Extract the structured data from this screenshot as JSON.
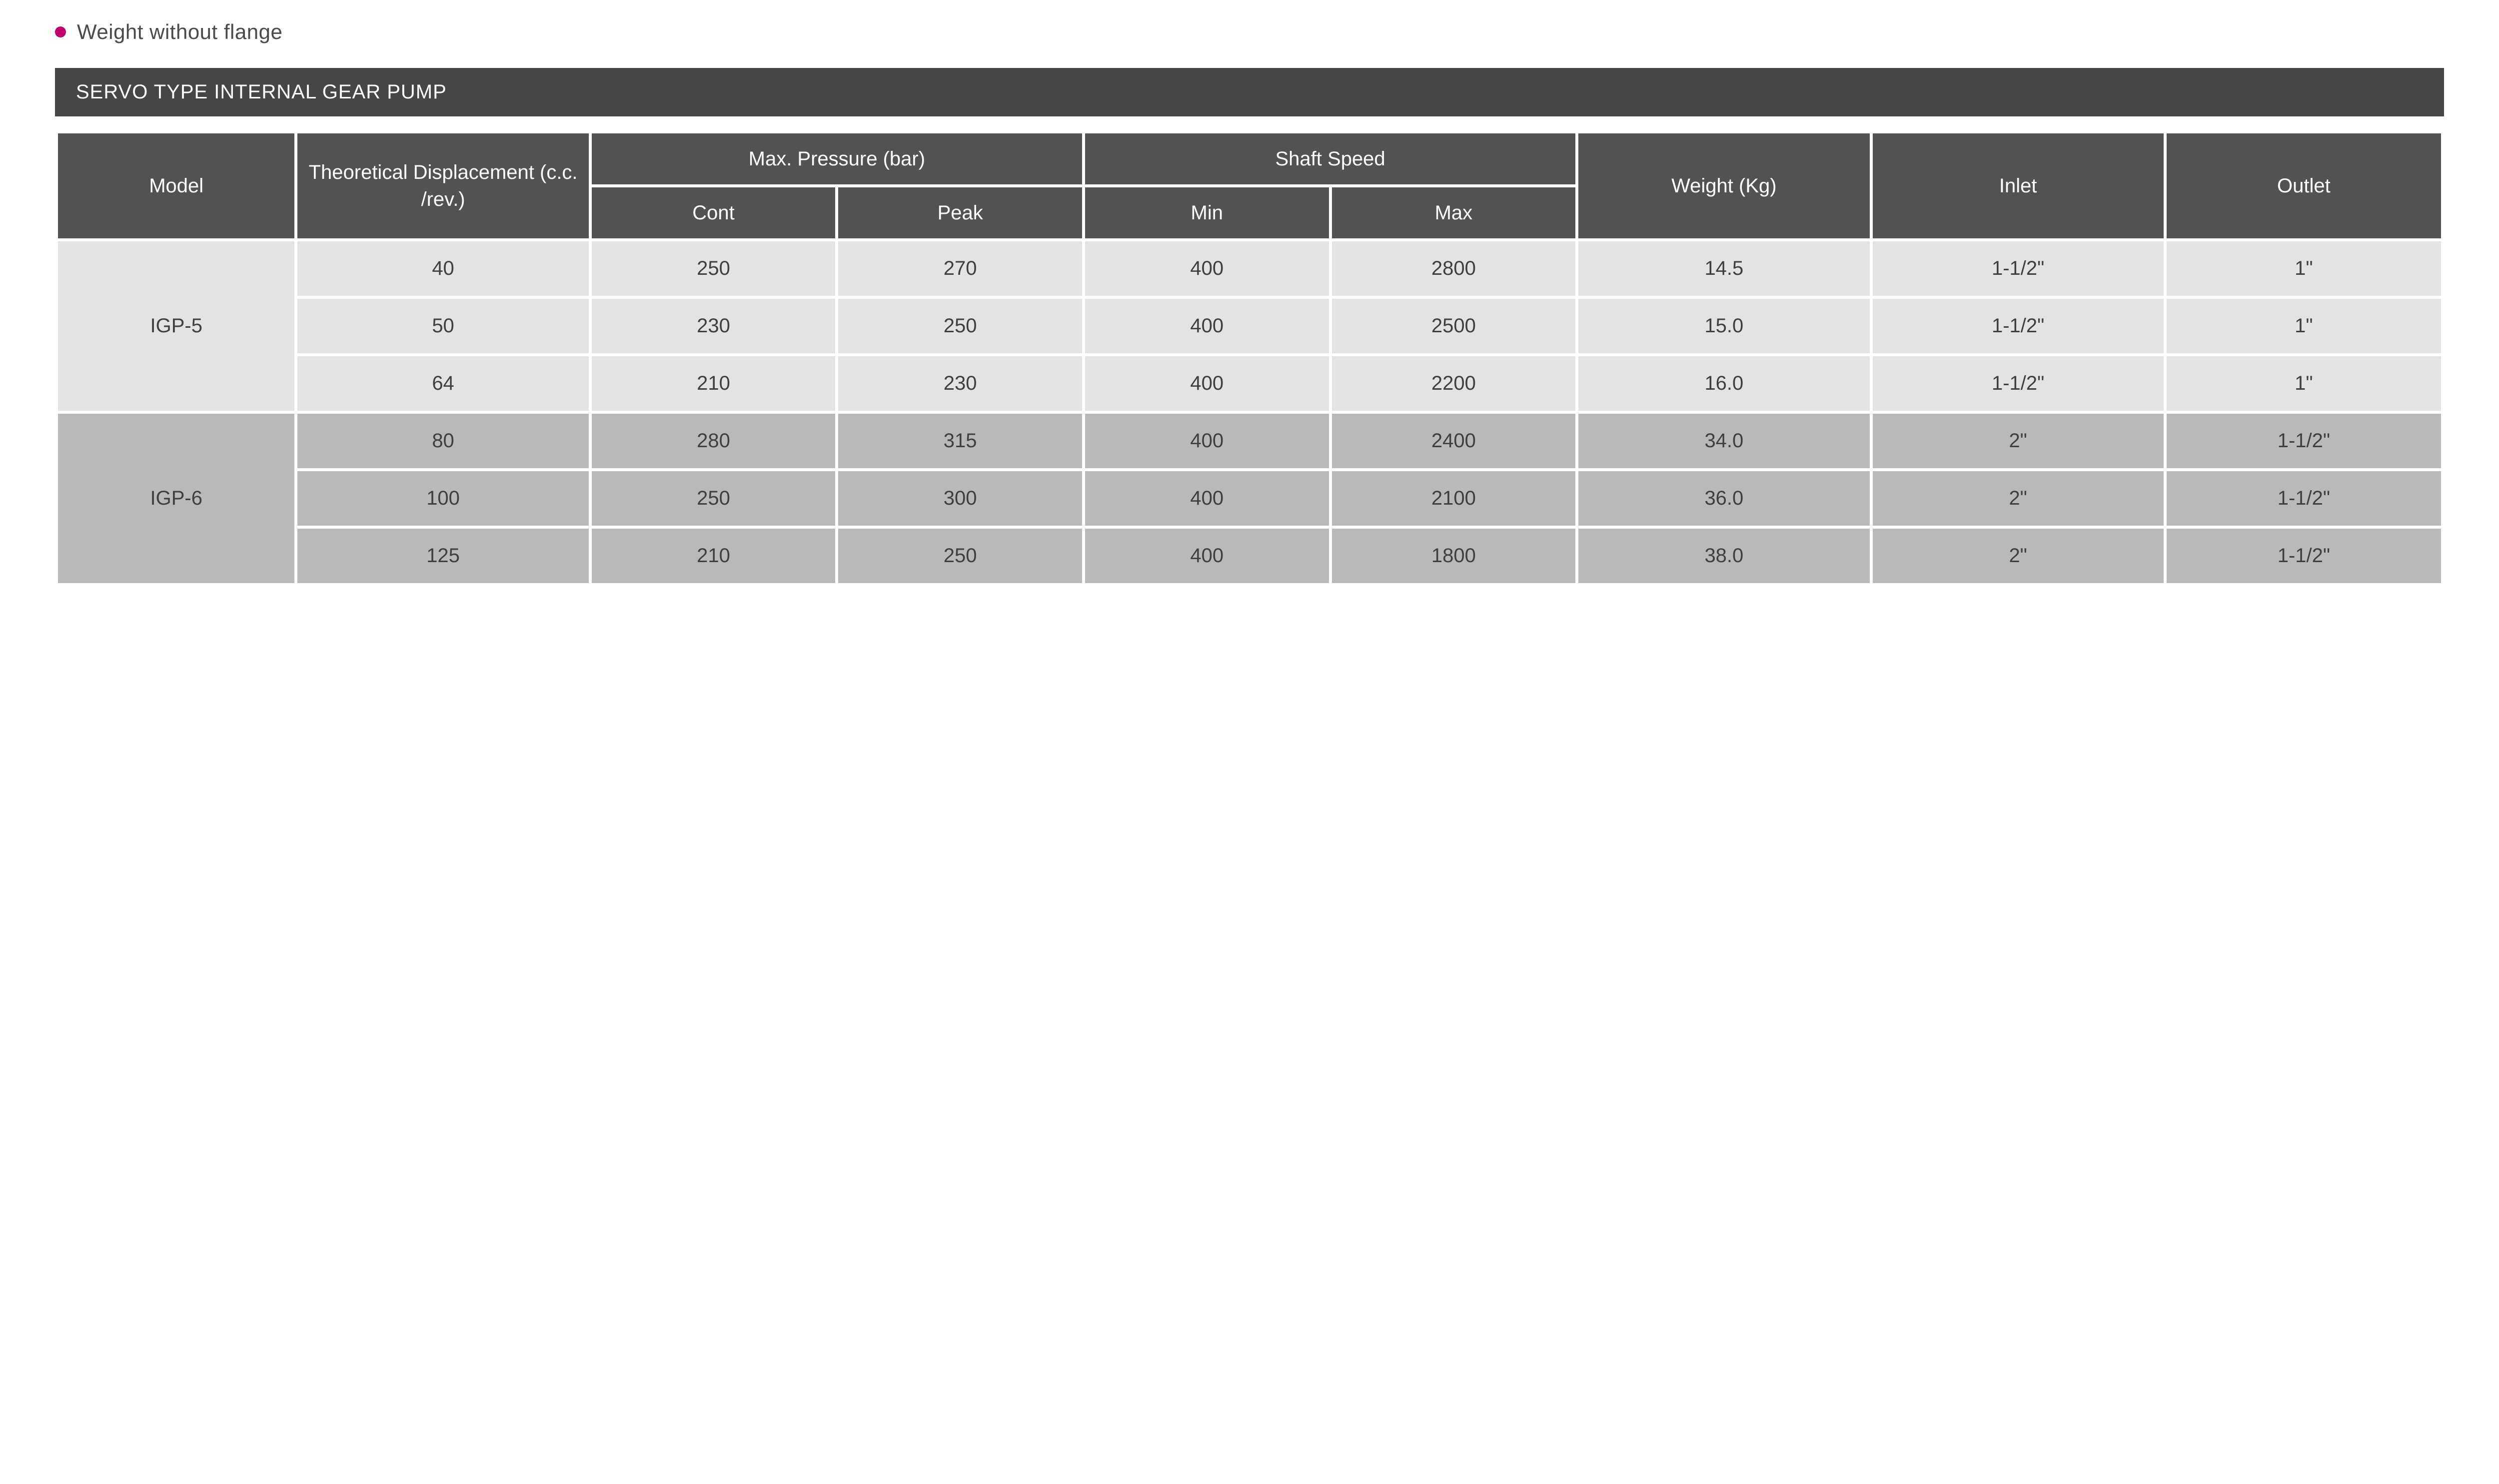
{
  "note": {
    "bullet_color": "#c4006e",
    "text": "Weight without flange"
  },
  "title": "SERVO TYPE INTERNAL GEAR PUMP",
  "colors": {
    "header_bg": "#525252",
    "header_fg": "#ffffff",
    "title_band_bg": "#464646",
    "row_group_a_bg": "#e3e3e3",
    "row_group_b_bg": "#b9b9b9",
    "spacing_color": "#ffffff",
    "page_bg": "#ffffff",
    "body_text": "#3f3f3f"
  },
  "table": {
    "type": "table",
    "header": {
      "model": "Model",
      "displacement": "Theoretical Displacement (c.c. /rev.)",
      "max_pressure": "Max. Pressure (bar)",
      "max_pressure_sub": {
        "cont": "Cont",
        "peak": "Peak"
      },
      "shaft_speed": "Shaft Speed",
      "shaft_speed_sub": {
        "min": "Min",
        "max": "Max"
      },
      "weight": "Weight (Kg)",
      "inlet": "Inlet",
      "outlet": "Outlet"
    },
    "column_widths_pct": [
      10,
      12.3,
      10.3,
      10.3,
      10.3,
      10.3,
      12.3,
      12.3,
      11.6
    ],
    "groups": [
      {
        "model": "IGP-5",
        "shade": "a",
        "rows": [
          {
            "disp": "40",
            "cont": "250",
            "peak": "270",
            "min": "400",
            "max": "2800",
            "wt": "14.5",
            "inlet": "1-1/2\"",
            "outlet": "1\""
          },
          {
            "disp": "50",
            "cont": "230",
            "peak": "250",
            "min": "400",
            "max": "2500",
            "wt": "15.0",
            "inlet": "1-1/2\"",
            "outlet": "1\""
          },
          {
            "disp": "64",
            "cont": "210",
            "peak": "230",
            "min": "400",
            "max": "2200",
            "wt": "16.0",
            "inlet": "1-1/2\"",
            "outlet": "1\""
          }
        ]
      },
      {
        "model": "IGP-6",
        "shade": "b",
        "rows": [
          {
            "disp": "80",
            "cont": "280",
            "peak": "315",
            "min": "400",
            "max": "2400",
            "wt": "34.0",
            "inlet": "2\"",
            "outlet": "1-1/2\""
          },
          {
            "disp": "100",
            "cont": "250",
            "peak": "300",
            "min": "400",
            "max": "2100",
            "wt": "36.0",
            "inlet": "2\"",
            "outlet": "1-1/2\""
          },
          {
            "disp": "125",
            "cont": "210",
            "peak": "250",
            "min": "400",
            "max": "1800",
            "wt": "38.0",
            "inlet": "2\"",
            "outlet": "1-1/2\""
          }
        ]
      }
    ]
  }
}
